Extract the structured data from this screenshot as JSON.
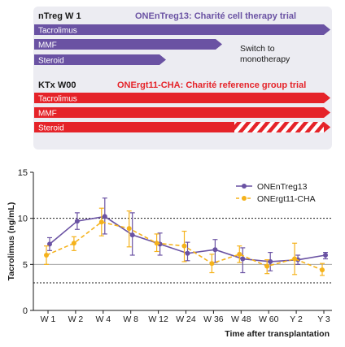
{
  "regimen": {
    "ntreg": {
      "code": "nTreg W 1",
      "trial": "ONEnTreg13: Charité cell therapy trial",
      "drugs": [
        "Tacrolimus",
        "MMF",
        "Steroid"
      ],
      "note_line1": "Switch to",
      "note_line2": "monotherapy"
    },
    "ktx": {
      "code": "KTx W00",
      "trial": "ONErgt11-CHA: Charité reference group trial",
      "drugs": [
        "Tacrolimus",
        "MMF",
        "Steroid"
      ]
    },
    "colors": {
      "purple": "#6a52a3",
      "red": "#e52329"
    }
  },
  "chart_data": {
    "type": "line",
    "ylabel": "Tacrolimus (ng/mL)",
    "xlabel": "Time after transplantation",
    "categories": [
      "W 1",
      "W 2",
      "W 4",
      "W 8",
      "W 12",
      "W 24",
      "W 36",
      "W 48",
      "W 60",
      "Y 2",
      "Y 3"
    ],
    "ylim": [
      0,
      15
    ],
    "yticks": [
      "0",
      "5",
      "10",
      "15"
    ],
    "reference_lines": [
      3,
      10
    ],
    "solid_line": 5,
    "series": [
      {
        "name": "ONEnTreg13",
        "color": "#6a52a3",
        "style": "solid",
        "values": [
          7.2,
          9.7,
          10.2,
          8.2,
          7.2,
          6.2,
          6.6,
          5.6,
          5.3,
          5.5,
          6.0
        ],
        "err_low": [
          6.5,
          8.8,
          8.3,
          6.0,
          6.0,
          5.4,
          5.2,
          4.1,
          4.3,
          5.0,
          5.6
        ],
        "err_high": [
          7.9,
          10.6,
          12.2,
          10.6,
          8.4,
          7.4,
          7.7,
          6.8,
          6.3,
          6.0,
          6.3
        ]
      },
      {
        "name": "ONErgt11-CHA",
        "color": "#f5b21b",
        "style": "dashed",
        "values": [
          6.0,
          7.3,
          9.6,
          8.9,
          7.3,
          7.0,
          5.1,
          6.1,
          4.8,
          5.6,
          4.4
        ],
        "err_low": [
          5.0,
          6.5,
          8.1,
          6.9,
          6.4,
          5.3,
          4.1,
          5.2,
          4.0,
          3.9,
          3.8
        ],
        "err_high": [
          7.0,
          8.0,
          11.1,
          10.8,
          8.3,
          8.6,
          6.1,
          7.0,
          5.5,
          7.3,
          5.1
        ]
      }
    ]
  }
}
